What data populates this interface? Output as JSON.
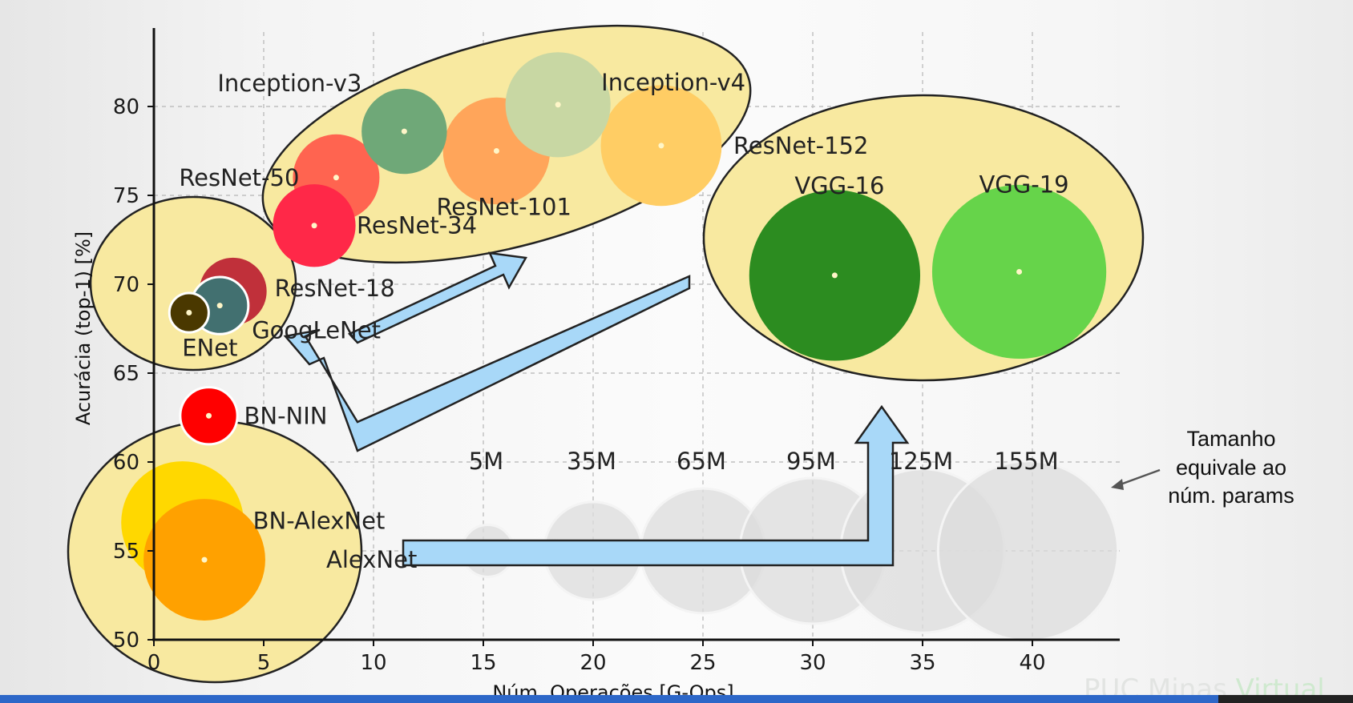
{
  "chart_data": {
    "type": "scatter",
    "title": "",
    "xlabel": "Núm. Operações [G-Ops]",
    "ylabel": "Acurácia (top-1) [%]",
    "xlim": [
      0,
      44
    ],
    "ylim": [
      50,
      82
    ],
    "x_ticks": [
      0,
      5,
      10,
      15,
      20,
      25,
      30,
      35,
      40
    ],
    "y_ticks": [
      50,
      55,
      60,
      65,
      70,
      75,
      80
    ],
    "grid": true,
    "points": [
      {
        "name": "AlexNet",
        "x": 2.3,
        "y": 54.5,
        "params_m": 61,
        "color": "#ffa100"
      },
      {
        "name": "BN-AlexNet",
        "x": 1.3,
        "y": 56.6,
        "params_m": 62,
        "color": "#ffd800"
      },
      {
        "name": "BN-NIN",
        "x": 2.5,
        "y": 62.6,
        "params_m": 7,
        "color": "#ff0000"
      },
      {
        "name": "ENet",
        "x": 1.6,
        "y": 68.4,
        "params_m": 1.5,
        "color": "#4a3800"
      },
      {
        "name": "GoogLeNet",
        "x": 3.0,
        "y": 68.8,
        "params_m": 7,
        "color": "#427070"
      },
      {
        "name": "ResNet-18",
        "x": 3.6,
        "y": 69.6,
        "params_m": 12,
        "color": "#c0303a"
      },
      {
        "name": "ResNet-34",
        "x": 7.3,
        "y": 73.3,
        "params_m": 22,
        "color": "#ff2848"
      },
      {
        "name": "ResNet-50",
        "x": 8.3,
        "y": 76.0,
        "params_m": 25,
        "color": "#ff6450"
      },
      {
        "name": "Inception-v3",
        "x": 11.4,
        "y": 78.6,
        "params_m": 24,
        "color": "#6fa878"
      },
      {
        "name": "ResNet-101",
        "x": 15.6,
        "y": 77.5,
        "params_m": 44,
        "color": "#ffa55a"
      },
      {
        "name": "Inception-v4",
        "x": 18.4,
        "y": 80.1,
        "params_m": 42,
        "color": "#c8d7a3"
      },
      {
        "name": "ResNet-152",
        "x": 23.1,
        "y": 77.8,
        "params_m": 60,
        "color": "#ffcd64"
      },
      {
        "name": "VGG-16",
        "x": 31.0,
        "y": 70.5,
        "params_m": 138,
        "color": "#2c8c20"
      },
      {
        "name": "VGG-19",
        "x": 39.4,
        "y": 70.7,
        "params_m": 144,
        "color": "#66d44a"
      }
    ],
    "size_legend": {
      "note": [
        "Tamanho",
        "equivale ao",
        "núm. params"
      ],
      "y": 55,
      "items": [
        {
          "label": "5M",
          "x": 15.2,
          "params_m": 5
        },
        {
          "label": "35M",
          "x": 20.0,
          "params_m": 35
        },
        {
          "label": "65M",
          "x": 25.0,
          "params_m": 65
        },
        {
          "label": "95M",
          "x": 30.0,
          "params_m": 95
        },
        {
          "label": "125M",
          "x": 35.0,
          "params_m": 125
        },
        {
          "label": "155M",
          "x": 39.8,
          "params_m": 155
        }
      ]
    }
  },
  "watermark": {
    "part1": "PUC Minas",
    "part2": "Virtual"
  }
}
